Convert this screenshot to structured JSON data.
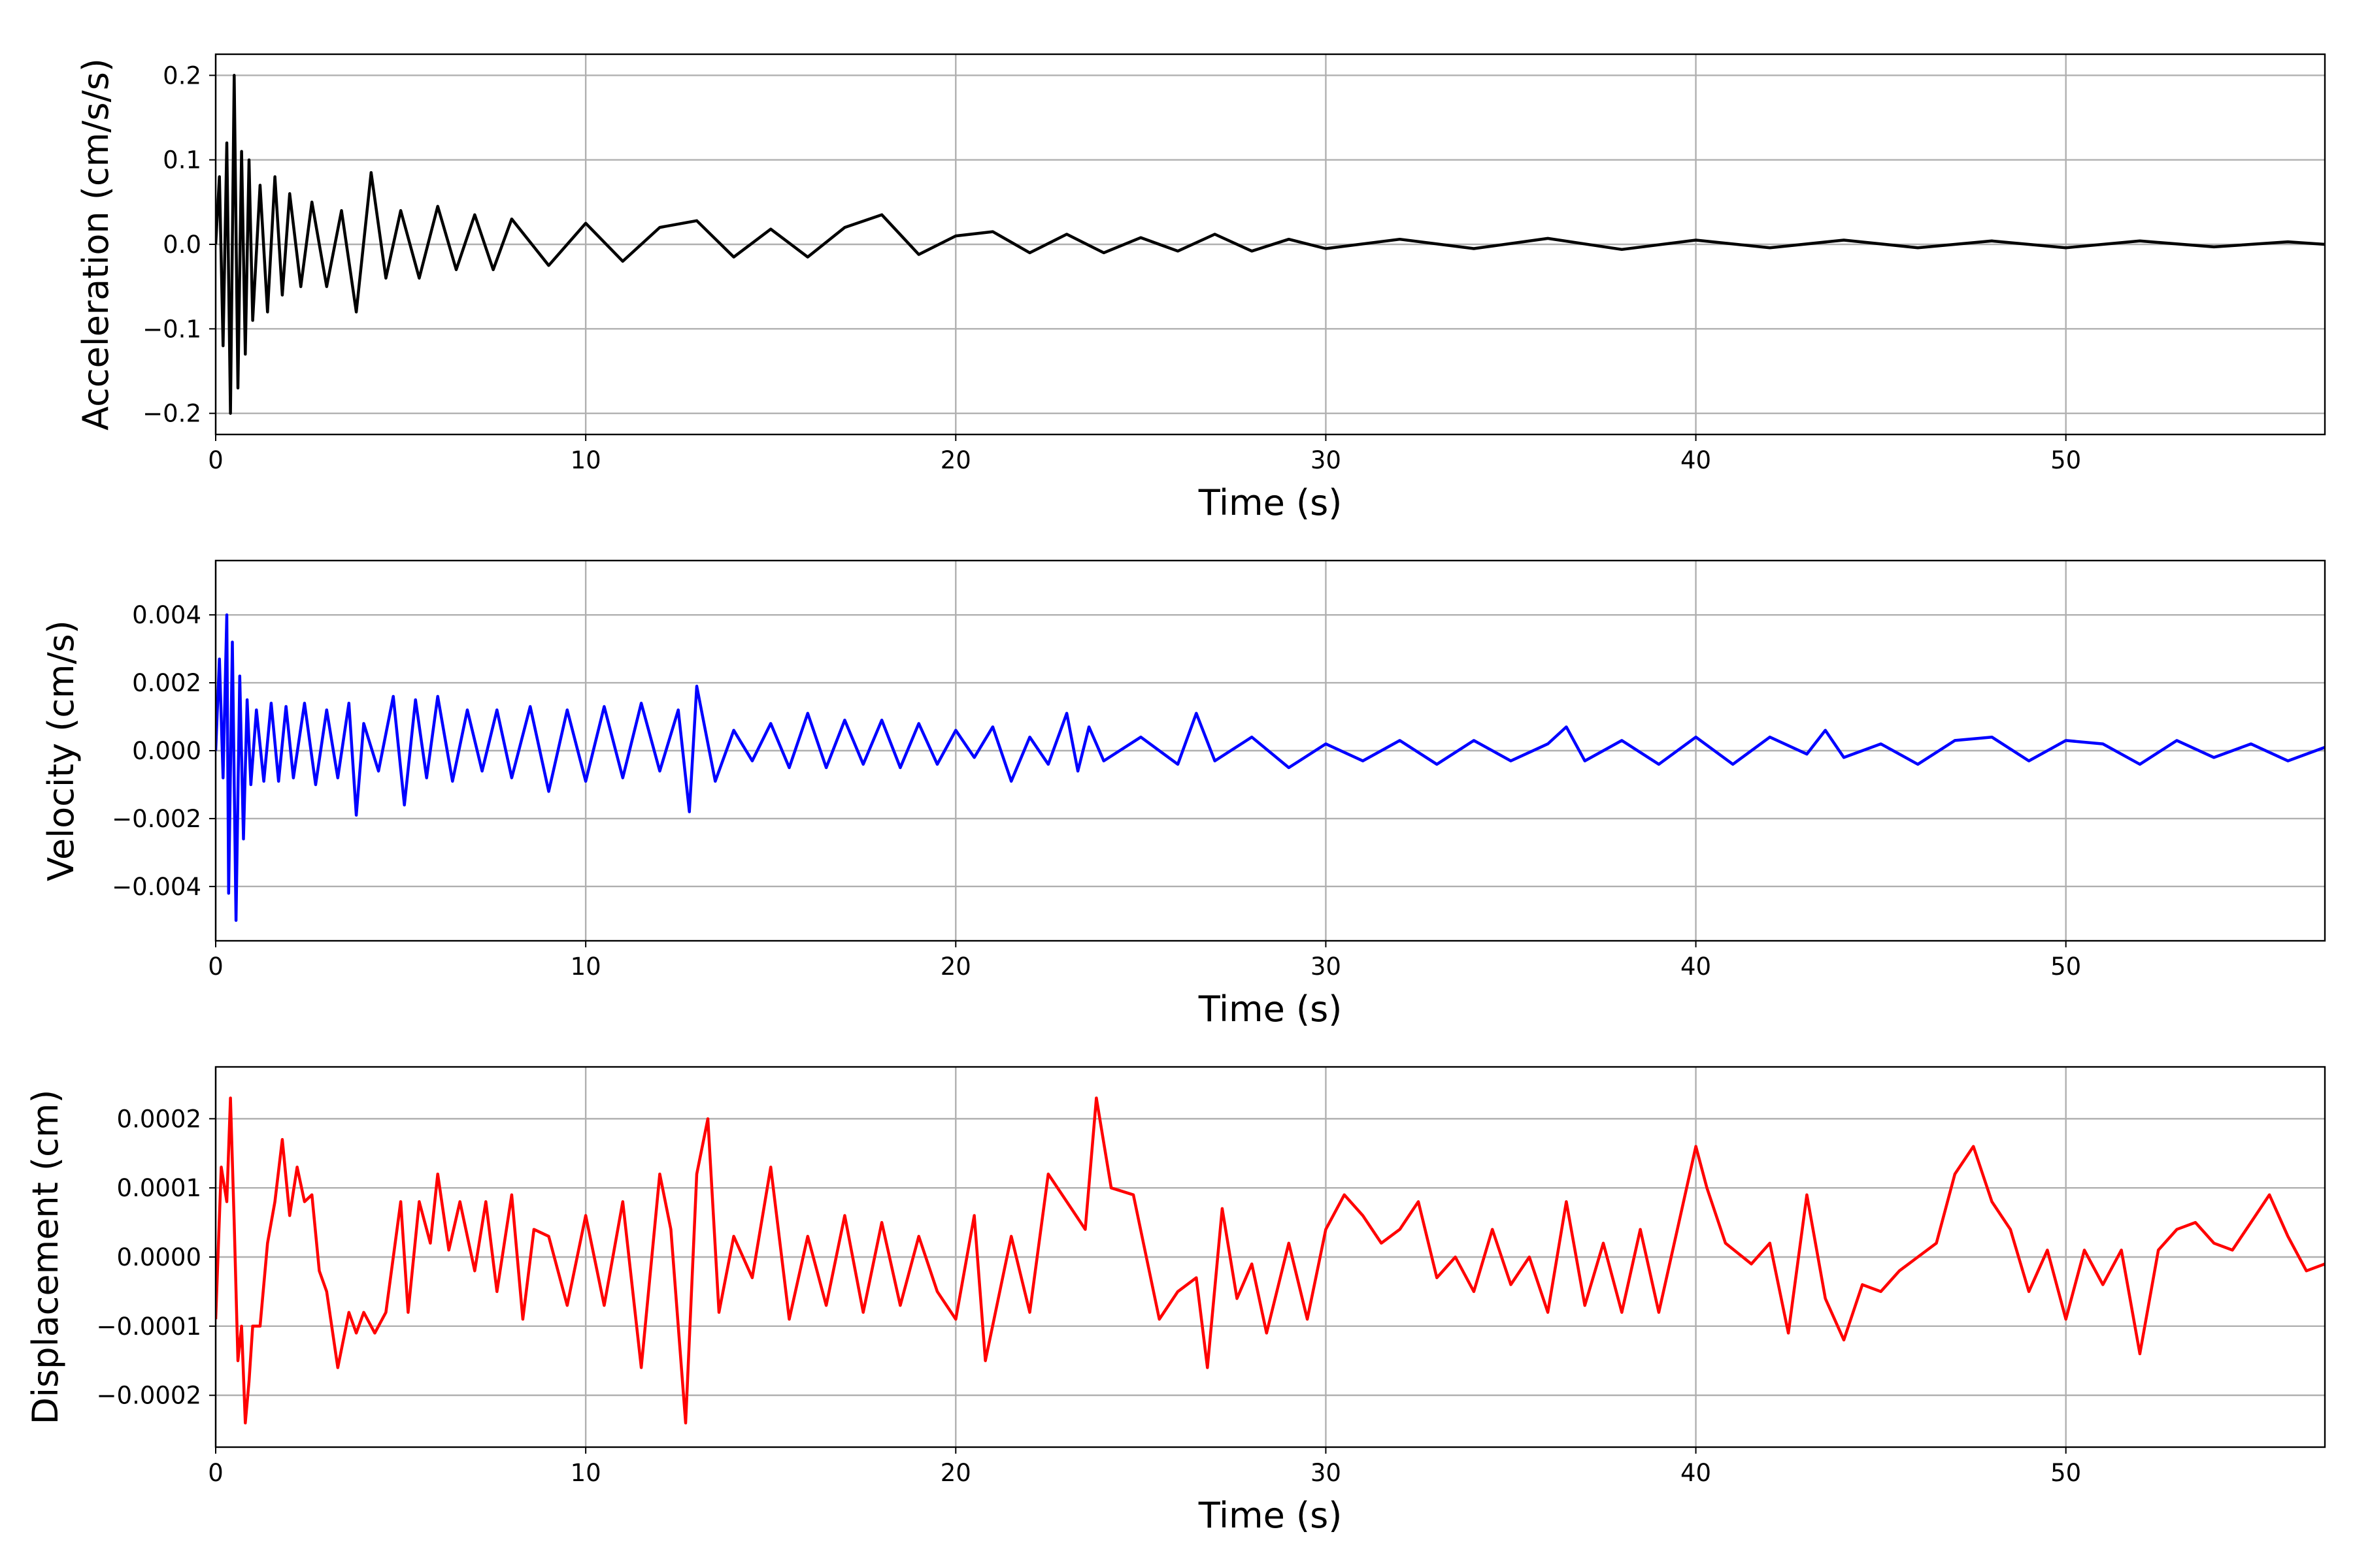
{
  "chart_data": [
    {
      "type": "line",
      "xlabel": "Time (s)",
      "ylabel": "Acceleration (cm/s/s)",
      "xlim": [
        0,
        57
      ],
      "ylim": [
        -0.225,
        0.225
      ],
      "xticks": [
        0,
        10,
        20,
        30,
        40,
        50
      ],
      "yticks": [
        -0.2,
        -0.1,
        0.0,
        0.1,
        0.2
      ],
      "ytick_labels": [
        "−0.2",
        "−0.1",
        "0.0",
        "0.1",
        "0.2"
      ],
      "grid": true,
      "color": "#000000",
      "series": [
        {
          "x": [
            0,
            0.1,
            0.2,
            0.3,
            0.4,
            0.5,
            0.6,
            0.7,
            0.8,
            0.9,
            1.0,
            1.2,
            1.4,
            1.6,
            1.8,
            2.0,
            2.3,
            2.6,
            3.0,
            3.4,
            3.8,
            4.2,
            4.6,
            5.0,
            5.5,
            6.0,
            6.5,
            7.0,
            7.5,
            8.0,
            9.0,
            10.0,
            11.0,
            12.0,
            13.0,
            14.0,
            15.0,
            16.0,
            17.0,
            18.0,
            19.0,
            20.0,
            21.0,
            22.0,
            23.0,
            24.0,
            25.0,
            26.0,
            27.0,
            28.0,
            29.0,
            30.0,
            32.0,
            34.0,
            36.0,
            38.0,
            40.0,
            42.0,
            44.0,
            46.0,
            48.0,
            50.0,
            52.0,
            54.0,
            56.0,
            57.0
          ],
          "y": [
            0.0,
            0.08,
            -0.12,
            0.12,
            -0.2,
            0.2,
            -0.17,
            0.11,
            -0.13,
            0.1,
            -0.09,
            0.07,
            -0.08,
            0.08,
            -0.06,
            0.06,
            -0.05,
            0.05,
            -0.05,
            0.04,
            -0.08,
            0.085,
            -0.04,
            0.04,
            -0.04,
            0.045,
            -0.03,
            0.035,
            -0.03,
            0.03,
            -0.025,
            0.025,
            -0.02,
            0.02,
            0.028,
            -0.015,
            0.018,
            -0.015,
            0.02,
            0.035,
            -0.012,
            0.01,
            0.015,
            -0.01,
            0.012,
            -0.01,
            0.008,
            -0.008,
            0.012,
            -0.008,
            0.006,
            -0.005,
            0.006,
            -0.005,
            0.007,
            -0.006,
            0.005,
            -0.004,
            0.005,
            -0.004,
            0.004,
            -0.004,
            0.004,
            -0.003,
            0.003,
            0.0
          ]
        }
      ]
    },
    {
      "type": "line",
      "xlabel": "Time (s)",
      "ylabel": "Velocity (cm/s)",
      "xlim": [
        0,
        57
      ],
      "ylim": [
        -0.0056,
        0.0056
      ],
      "xticks": [
        0,
        10,
        20,
        30,
        40,
        50
      ],
      "yticks": [
        -0.004,
        -0.002,
        0.0,
        0.002,
        0.004
      ],
      "ytick_labels": [
        "−0.004",
        "−0.002",
        "0.000",
        "0.002",
        "0.004"
      ],
      "grid": true,
      "color": "#0000ff",
      "series": [
        {
          "x": [
            0,
            0.1,
            0.2,
            0.3,
            0.35,
            0.45,
            0.55,
            0.65,
            0.75,
            0.85,
            0.95,
            1.1,
            1.3,
            1.5,
            1.7,
            1.9,
            2.1,
            2.4,
            2.7,
            3.0,
            3.3,
            3.6,
            3.8,
            4.0,
            4.4,
            4.8,
            5.1,
            5.4,
            5.7,
            6.0,
            6.4,
            6.8,
            7.2,
            7.6,
            8.0,
            8.5,
            9.0,
            9.5,
            10.0,
            10.5,
            11.0,
            11.5,
            12.0,
            12.5,
            12.8,
            13.0,
            13.5,
            14.0,
            14.5,
            15.0,
            15.5,
            16.0,
            16.5,
            17.0,
            17.5,
            18.0,
            18.5,
            19.0,
            19.5,
            20.0,
            20.5,
            21.0,
            21.5,
            22.0,
            22.5,
            23.0,
            23.3,
            23.6,
            24.0,
            25.0,
            26.0,
            26.5,
            27.0,
            28.0,
            29.0,
            30.0,
            31.0,
            32.0,
            33.0,
            34.0,
            35.0,
            36.0,
            36.5,
            37.0,
            38.0,
            39.0,
            40.0,
            41.0,
            42.0,
            43.0,
            43.5,
            44.0,
            45.0,
            46.0,
            47.0,
            48.0,
            49.0,
            50.0,
            51.0,
            52.0,
            53.0,
            54.0,
            55.0,
            56.0,
            57.0
          ],
          "y": [
            0.0,
            0.0027,
            -0.0008,
            0.004,
            -0.0042,
            0.0032,
            -0.005,
            0.0022,
            -0.0026,
            0.0015,
            -0.001,
            0.0012,
            -0.0009,
            0.0014,
            -0.0009,
            0.0013,
            -0.0008,
            0.0014,
            -0.001,
            0.0012,
            -0.0008,
            0.0014,
            -0.0019,
            0.0008,
            -0.0006,
            0.0016,
            -0.0016,
            0.0015,
            -0.0008,
            0.0016,
            -0.0009,
            0.0012,
            -0.0006,
            0.0012,
            -0.0008,
            0.0013,
            -0.0012,
            0.0012,
            -0.0009,
            0.0013,
            -0.0008,
            0.0014,
            -0.0006,
            0.0012,
            -0.0018,
            0.0019,
            -0.0009,
            0.0006,
            -0.0003,
            0.0008,
            -0.0005,
            0.0011,
            -0.0005,
            0.0009,
            -0.0004,
            0.0009,
            -0.0005,
            0.0008,
            -0.0004,
            0.0006,
            -0.0002,
            0.0007,
            -0.0009,
            0.0004,
            -0.0004,
            0.0011,
            -0.0006,
            0.0007,
            -0.0003,
            0.0004,
            -0.0004,
            0.0011,
            -0.0003,
            0.0004,
            -0.0005,
            0.0002,
            -0.0003,
            0.0003,
            -0.0004,
            0.0003,
            -0.0003,
            0.0002,
            0.0007,
            -0.0003,
            0.0003,
            -0.0004,
            0.0004,
            -0.0004,
            0.0004,
            -0.0001,
            0.0006,
            -0.0002,
            0.0002,
            -0.0004,
            0.0003,
            0.0004,
            -0.0003,
            0.0003,
            0.0002,
            -0.0004,
            0.0003,
            -0.0002,
            0.0002,
            -0.0003,
            0.0001
          ]
        }
      ]
    },
    {
      "type": "line",
      "xlabel": "Time (s)",
      "ylabel": "Displacement (cm)",
      "xlim": [
        0,
        57
      ],
      "ylim": [
        -0.000275,
        0.000275
      ],
      "xticks": [
        0,
        10,
        20,
        30,
        40,
        50
      ],
      "yticks": [
        -0.0002,
        -0.0001,
        0.0,
        0.0001,
        0.0002
      ],
      "ytick_labels": [
        "−0.0002",
        "−0.0001",
        "0.0000",
        "0.0001",
        "0.0002"
      ],
      "grid": true,
      "color": "#ff0000",
      "series": [
        {
          "x": [
            0,
            0.15,
            0.3,
            0.4,
            0.5,
            0.6,
            0.7,
            0.8,
            0.9,
            1.0,
            1.2,
            1.4,
            1.6,
            1.8,
            2.0,
            2.2,
            2.4,
            2.6,
            2.8,
            3.0,
            3.3,
            3.6,
            3.8,
            4.0,
            4.3,
            4.6,
            5.0,
            5.2,
            5.5,
            5.8,
            6.0,
            6.3,
            6.6,
            7.0,
            7.3,
            7.6,
            8.0,
            8.3,
            8.6,
            9.0,
            9.5,
            10.0,
            10.5,
            11.0,
            11.5,
            12.0,
            12.3,
            12.7,
            13.0,
            13.3,
            13.6,
            14.0,
            14.5,
            15.0,
            15.5,
            16.0,
            16.5,
            17.0,
            17.5,
            18.0,
            18.5,
            19.0,
            19.5,
            20.0,
            20.5,
            20.8,
            21.5,
            22.0,
            22.5,
            23.0,
            23.5,
            23.8,
            24.2,
            24.8,
            25.5,
            26.0,
            26.5,
            26.8,
            27.2,
            27.6,
            28.0,
            28.4,
            29.0,
            29.5,
            30.0,
            30.5,
            31.0,
            31.5,
            32.0,
            32.5,
            33.0,
            33.5,
            34.0,
            34.5,
            35.0,
            35.5,
            36.0,
            36.5,
            37.0,
            37.5,
            38.0,
            38.5,
            39.0,
            39.5,
            40.0,
            40.3,
            40.8,
            41.5,
            42.0,
            42.5,
            43.0,
            43.5,
            44.0,
            44.5,
            45.0,
            45.5,
            46.0,
            46.5,
            47.0,
            47.5,
            48.0,
            48.5,
            49.0,
            49.5,
            50.0,
            50.5,
            51.0,
            51.5,
            52.0,
            52.5,
            53.0,
            53.5,
            54.0,
            54.5,
            55.0,
            55.5,
            56.0,
            56.5,
            57.0
          ],
          "y": [
            -9e-05,
            0.00013,
            8e-05,
            0.00023,
            5e-05,
            -0.00015,
            -0.0001,
            -0.00024,
            -0.00018,
            -0.0001,
            -0.0001,
            2e-05,
            8e-05,
            0.00017,
            6e-05,
            0.00013,
            8e-05,
            9e-05,
            -2e-05,
            -5e-05,
            -0.00016,
            -8e-05,
            -0.00011,
            -8e-05,
            -0.00011,
            -8e-05,
            8e-05,
            -8e-05,
            8e-05,
            2e-05,
            0.00012,
            1e-05,
            8e-05,
            -2e-05,
            8e-05,
            -5e-05,
            9e-05,
            -9e-05,
            4e-05,
            3e-05,
            -7e-05,
            6e-05,
            -7e-05,
            8e-05,
            -0.00016,
            0.00012,
            4e-05,
            -0.00024,
            0.00012,
            0.0002,
            -8e-05,
            3e-05,
            -3e-05,
            0.00013,
            -9e-05,
            3e-05,
            -7e-05,
            6e-05,
            -8e-05,
            5e-05,
            -7e-05,
            3e-05,
            -5e-05,
            -9e-05,
            6e-05,
            -0.00015,
            3e-05,
            -8e-05,
            0.00012,
            8e-05,
            4e-05,
            0.00023,
            0.0001,
            9e-05,
            -9e-05,
            -5e-05,
            -3e-05,
            -0.00016,
            7e-05,
            -6e-05,
            -1e-05,
            -0.00011,
            2e-05,
            -9e-05,
            4e-05,
            9e-05,
            6e-05,
            2e-05,
            4e-05,
            8e-05,
            -3e-05,
            0.0,
            -5e-05,
            4e-05,
            -4e-05,
            0.0,
            -8e-05,
            8e-05,
            -7e-05,
            2e-05,
            -8e-05,
            4e-05,
            -8e-05,
            4e-05,
            0.00016,
            0.0001,
            2e-05,
            -1e-05,
            2e-05,
            -0.00011,
            9e-05,
            -6e-05,
            -0.00012,
            -4e-05,
            -5e-05,
            -2e-05,
            0.0,
            2e-05,
            0.00012,
            0.00016,
            8e-05,
            4e-05,
            -5e-05,
            1e-05,
            -9e-05,
            1e-05,
            -4e-05,
            1e-05,
            -0.00014,
            1e-05,
            4e-05,
            5e-05,
            2e-05,
            1e-05,
            5e-05,
            9e-05,
            3e-05,
            -2e-05,
            -1e-05
          ]
        }
      ]
    }
  ]
}
